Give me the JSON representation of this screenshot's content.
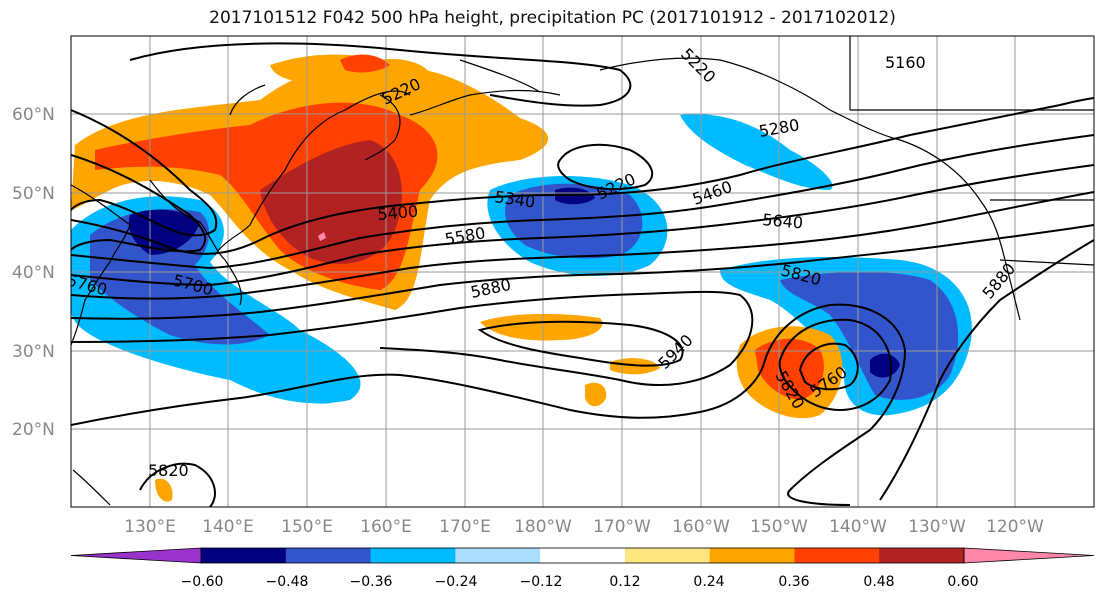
{
  "title": "2017101512 F042 500 hPa height, precipitation PC (2017101912 - 2017102012)",
  "map": {
    "lat_labels": [
      "60°N",
      "50°N",
      "40°N",
      "30°N",
      "20°N"
    ],
    "lon_labels": [
      "130°E",
      "140°E",
      "150°E",
      "160°E",
      "170°E",
      "180°W",
      "170°W",
      "160°W",
      "150°W",
      "140°W",
      "130°W",
      "120°W"
    ],
    "contour_labels": [
      "5160",
      "5220",
      "5220",
      "5280",
      "5340",
      "5220",
      "5460",
      "5400",
      "5640",
      "5580",
      "5820",
      "5880",
      "5700",
      "5760",
      "5880",
      "5940",
      "5820",
      "5760",
      "5820"
    ],
    "colors": {
      "height_contour": "#000000",
      "coastline": "#000000",
      "grid": "#999999",
      "label_gray": "#888888"
    }
  },
  "colorbar": {
    "ticks": [
      "−0.60",
      "−0.48",
      "−0.36",
      "−0.24",
      "−0.12",
      "0.12",
      "0.24",
      "0.36",
      "0.48",
      "0.60"
    ],
    "colors": [
      "#9933cc",
      "#000080",
      "#3355cc",
      "#00bbff",
      "#aaddff",
      "#ffffff",
      "#ffe680",
      "#ffa500",
      "#ff4000",
      "#b22222",
      "#ff88aa"
    ]
  }
}
